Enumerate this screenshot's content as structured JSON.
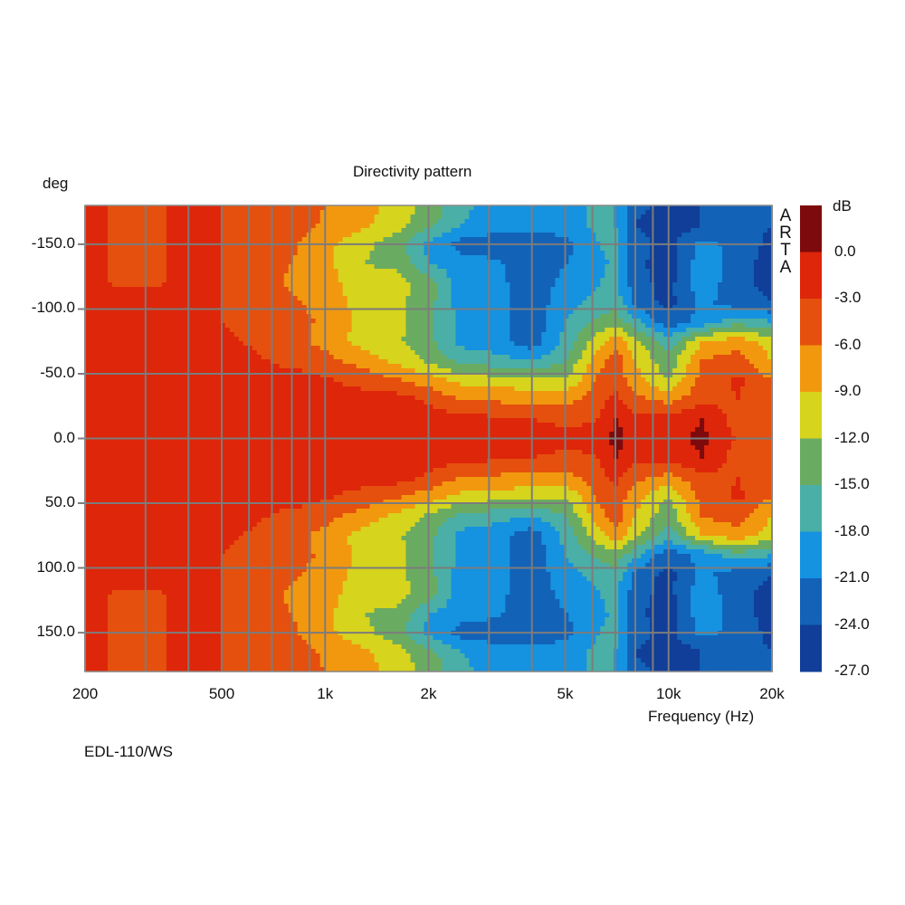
{
  "chart_data": {
    "type": "heatmap",
    "title": "Directivity pattern",
    "xlabel": "Frequency (Hz)",
    "ylabel": "deg",
    "xscale": "log",
    "xlim": [
      200,
      20000
    ],
    "ylim": [
      -180,
      180
    ],
    "x_ticks": [
      {
        "v": 200,
        "label": "200"
      },
      {
        "v": 500,
        "label": "500"
      },
      {
        "v": 1000,
        "label": "1k"
      },
      {
        "v": 2000,
        "label": "2k"
      },
      {
        "v": 5000,
        "label": "5k"
      },
      {
        "v": 10000,
        "label": "10k"
      },
      {
        "v": 20000,
        "label": "20k"
      }
    ],
    "y_ticks": [
      {
        "v": -150,
        "label": "-150.0"
      },
      {
        "v": -100,
        "label": "-100.0"
      },
      {
        "v": -50,
        "label": "-50.0"
      },
      {
        "v": 0,
        "label": "0.0"
      },
      {
        "v": 50,
        "label": "50.0"
      },
      {
        "v": 100,
        "label": "100.0"
      },
      {
        "v": 150,
        "label": "150.0"
      }
    ],
    "grid": true,
    "symmetric_about_zero": true,
    "frequencies": [
      200,
      250,
      315,
      400,
      500,
      630,
      800,
      1000,
      1250,
      1600,
      2000,
      2500,
      3150,
      4000,
      5000,
      6300,
      7000,
      8000,
      10000,
      12500,
      16000,
      20000
    ],
    "angles": [
      0,
      15,
      30,
      45,
      60,
      75,
      90,
      105,
      120,
      135,
      150,
      165,
      180
    ],
    "values_db": [
      [
        -1.5,
        -1.5,
        -1.5,
        -1.5,
        -1.5,
        -1.5,
        -1.5,
        -1.5,
        -1.5,
        -1.5,
        -1.5,
        -1.5,
        -1.5,
        -1.5,
        -1.5,
        -2,
        1,
        -1.5,
        -2,
        1,
        -3.5,
        -4
      ],
      [
        -1.5,
        -1.5,
        -1.5,
        -1.5,
        -1.5,
        -1.5,
        -1.5,
        -1.5,
        -1.5,
        -1.5,
        -1.5,
        -2,
        -2.5,
        -3,
        -4,
        -3,
        0.5,
        -2,
        -2,
        0,
        -4.5,
        -5
      ],
      [
        -1.5,
        -1.5,
        -1.5,
        -1.5,
        -1.5,
        -1.5,
        -1.5,
        -1.5,
        -1.5,
        -1.5,
        -3.5,
        -6,
        -6.5,
        -7,
        -7,
        -4,
        -2,
        -5,
        -7,
        -4,
        -3,
        -5
      ],
      [
        -1.5,
        -1.5,
        -1.5,
        -1.5,
        -1.5,
        -1.5,
        -1.5,
        -2.5,
        -4,
        -5.5,
        -7.5,
        -10,
        -10.5,
        -11,
        -12,
        -5,
        -4,
        -8,
        -12,
        -5,
        -2.5,
        -6
      ],
      [
        -1.5,
        -1.5,
        -1.5,
        -1.5,
        -1.5,
        -2.5,
        -4,
        -5,
        -7,
        -9.5,
        -12.5,
        -16,
        -17,
        -18,
        -15,
        -7,
        -4,
        -9,
        -14,
        -6,
        -4.5,
        -9
      ],
      [
        -1.5,
        -1.5,
        -1.5,
        -1.5,
        -2.5,
        -3.5,
        -5,
        -7,
        -10,
        -11.5,
        -14,
        -19,
        -19.5,
        -23,
        -17,
        -10,
        -7,
        -11,
        -17,
        -9,
        -7,
        -11
      ],
      [
        -1.5,
        -1.5,
        -1.5,
        -1.5,
        -3,
        -4,
        -5,
        -6.5,
        -9.5,
        -11,
        -14,
        -19,
        -20,
        -23,
        -18,
        -14,
        -13,
        -17,
        -23,
        -20,
        -16,
        -18
      ],
      [
        -1.5,
        -1.5,
        -1.5,
        -1.5,
        -3,
        -4,
        -5.5,
        -7,
        -10,
        -11,
        -14,
        -19.5,
        -20,
        -23,
        -19,
        -17,
        -16,
        -22,
        -25,
        -20,
        -23,
        -24
      ],
      [
        -2,
        -3.5,
        -3.5,
        -2,
        -3,
        -4.5,
        -6.5,
        -7.5,
        -10.5,
        -11,
        -13,
        -20,
        -20,
        -23,
        -20,
        -18,
        -17,
        -23,
        -25,
        -19,
        -23,
        -25
      ],
      [
        -2,
        -3.5,
        -3.5,
        -2,
        -3,
        -4.5,
        -6,
        -8,
        -12,
        -12.5,
        -18,
        -20,
        -20.5,
        -23,
        -21,
        -19,
        -17,
        -23,
        -26,
        -19,
        -23,
        -25
      ],
      [
        -2,
        -3.5,
        -3.5,
        -2,
        -3,
        -4.5,
        -5.5,
        -8,
        -11,
        -13.5,
        -19,
        -22,
        -22.5,
        -23,
        -22,
        -18,
        -17,
        -23,
        -25,
        -20,
        -22,
        -25
      ],
      [
        -2,
        -3.5,
        -3.5,
        -2,
        -3,
        -4,
        -4.5,
        -6.5,
        -8,
        -10.5,
        -14,
        -18,
        -20,
        -20,
        -19.5,
        -17,
        -18,
        -24,
        -26,
        -24,
        -23,
        -24
      ],
      [
        -2,
        -3.5,
        -3.5,
        -2,
        -3,
        -4,
        -4.5,
        -6,
        -7.5,
        -10,
        -13,
        -17,
        -19.5,
        -20,
        -19.5,
        -17,
        -18,
        -23,
        -25,
        -24,
        -23,
        -24
      ]
    ],
    "colorbar": {
      "title": "dB",
      "labels": [
        "0.0",
        "-3.0",
        "-6.0",
        "-9.0",
        "-12.0",
        "-15.0",
        "-18.0",
        "-21.0",
        "-24.0",
        "-27.0"
      ],
      "levels": [
        0,
        -3,
        -6,
        -9,
        -12,
        -15,
        -18,
        -21,
        -24,
        -27
      ],
      "colors": [
        "#7d0a0c",
        "#de260a",
        "#e5500e",
        "#f2980f",
        "#d6d41c",
        "#6aab62",
        "#4aafa6",
        "#1592e0",
        "#1262b8",
        "#103e98"
      ]
    },
    "watermark": "ARTA",
    "caption": "EDL-110/WS"
  }
}
